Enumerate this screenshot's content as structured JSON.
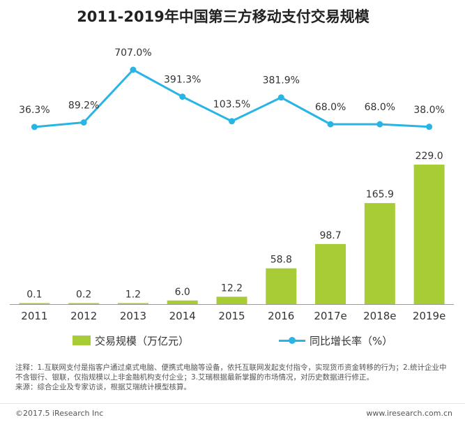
{
  "title": "2011-2019年中国第三方移动支付交易规模",
  "colors": {
    "bar": "#a8cc35",
    "line": "#28b5e6",
    "axis": "#999999",
    "text": "#333333"
  },
  "chart_data": {
    "type": "bar",
    "categories": [
      "2011",
      "2012",
      "2013",
      "2014",
      "2015",
      "2016",
      "2017e",
      "2018e",
      "2019e"
    ],
    "series": [
      {
        "name": "交易规模（万亿元）",
        "type": "bar",
        "values": [
          0.1,
          0.2,
          1.2,
          6.0,
          12.2,
          58.8,
          98.7,
          165.9,
          229.0
        ],
        "labels": [
          "0.1",
          "0.2",
          "1.2",
          "6.0",
          "12.2",
          "58.8",
          "98.7",
          "165.9",
          "229.0"
        ]
      },
      {
        "name": "同比增长率（%）",
        "type": "line",
        "values": [
          36.3,
          89.2,
          707.0,
          391.3,
          103.5,
          381.9,
          68.0,
          68.0,
          38.0
        ],
        "labels": [
          "36.3%",
          "89.2%",
          "707.0%",
          "391.3%",
          "103.5%",
          "381.9%",
          "68.0%",
          "68.0%",
          "38.0%"
        ]
      }
    ],
    "legend": "bottom"
  },
  "legend": {
    "bar_label": "交易规模（万亿元）",
    "line_label": "同比增长率（%）"
  },
  "notes": {
    "line1": "注释：1.互联网支付是指客户通过桌式电脑、便携式电脑等设备，依托互联网发起支付指令，实现货币资金转移的行为；2.统计企业中不含银行、银联，仅指规模以上非金融机构支付企业；3.艾瑞根据最新掌握的市场情况，对历史数据进行修正。",
    "line2": "来源：综合企业及专家访谈，根据艾瑞统计模型核算。"
  },
  "footer": {
    "copyright": "©2017.5 iResearch Inc",
    "website": "www.iresearch.com.cn"
  }
}
